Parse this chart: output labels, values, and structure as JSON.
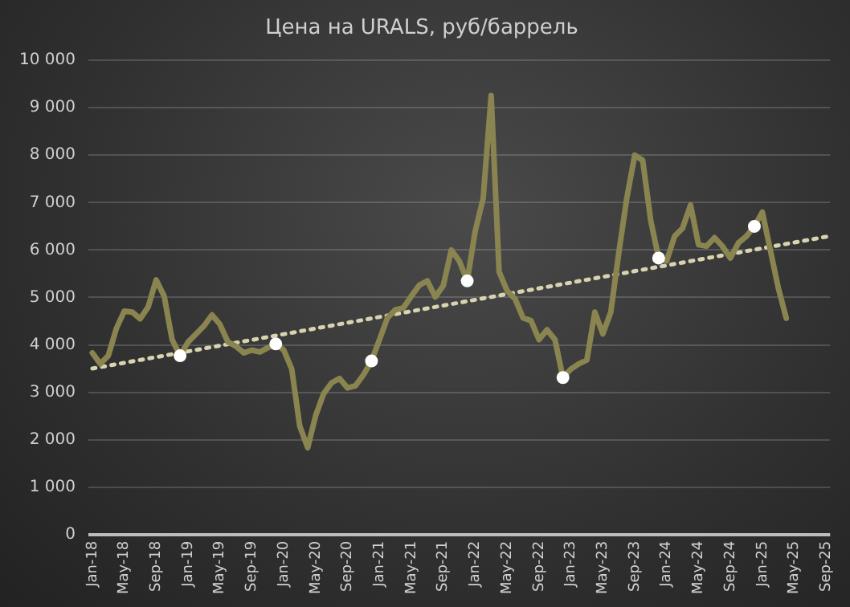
{
  "chart_data": {
    "type": "line",
    "title": "Цена на URALS, руб/баррель",
    "categories": [
      "Jan-18",
      null,
      null,
      null,
      "May-18",
      null,
      null,
      null,
      "Sep-18",
      null,
      null,
      null,
      "Jan-19",
      null,
      null,
      null,
      "May-19",
      null,
      null,
      null,
      "Sep-19",
      null,
      null,
      null,
      "Jan-20",
      null,
      null,
      null,
      "May-20",
      null,
      null,
      null,
      "Sep-20",
      null,
      null,
      null,
      "Jan-21",
      null,
      null,
      null,
      "May-21",
      null,
      null,
      null,
      "Sep-21",
      null,
      null,
      null,
      "Jan-22",
      null,
      null,
      null,
      "May-22",
      null,
      null,
      null,
      "Sep-22",
      null,
      null,
      null,
      "Jan-23",
      null,
      null,
      null,
      "May-23",
      null,
      null,
      null,
      "Sep-23",
      null,
      null,
      null,
      "Jan-24",
      null,
      null,
      null,
      "May-24",
      null,
      null,
      null,
      "Sep-24",
      null,
      null,
      null,
      "Jan-25",
      null,
      null,
      null,
      "May-25",
      null,
      null,
      null,
      "Sep-25"
    ],
    "series": [
      {
        "type": "line",
        "color": "#8a8450",
        "marker": "none",
        "line_style": "solid",
        "values": [
          3830,
          3600,
          3770,
          4340,
          4710,
          4690,
          4550,
          4800,
          5370,
          5030,
          4110,
          3770,
          4060,
          4230,
          4400,
          4630,
          4430,
          4060,
          3970,
          3830,
          3890,
          3850,
          3940,
          4020,
          3890,
          3490,
          2290,
          1830,
          2510,
          2970,
          3200,
          3290,
          3090,
          3140,
          3370,
          3660,
          4110,
          4570,
          4740,
          4780,
          5030,
          5260,
          5350,
          5010,
          5250,
          6000,
          5770,
          5350,
          6400,
          7090,
          9260,
          5540,
          5140,
          4970,
          4570,
          4510,
          4110,
          4320,
          4110,
          3310,
          3490,
          3600,
          3680,
          4690,
          4230,
          4690,
          5940,
          7090,
          8000,
          7890,
          6630,
          5830,
          5770,
          6290,
          6460,
          6950,
          6110,
          6080,
          6260,
          6080,
          5830,
          6150,
          6290,
          6500,
          6800,
          6000,
          5200,
          4560,
          null,
          null,
          null,
          null,
          null
        ]
      },
      {
        "type": "line",
        "color": "#d8d4b0",
        "marker": "none",
        "line_style": "dotted",
        "values": [
          3500,
          null,
          null,
          null,
          null,
          null,
          null,
          null,
          null,
          null,
          null,
          null,
          null,
          null,
          null,
          null,
          null,
          null,
          null,
          null,
          null,
          null,
          null,
          null,
          null,
          null,
          null,
          null,
          null,
          null,
          null,
          null,
          null,
          null,
          null,
          null,
          null,
          null,
          null,
          null,
          null,
          null,
          null,
          null,
          null,
          null,
          null,
          null,
          null,
          null,
          null,
          null,
          null,
          null,
          null,
          null,
          null,
          null,
          null,
          null,
          null,
          null,
          null,
          null,
          null,
          null,
          null,
          null,
          null,
          null,
          null,
          null,
          null,
          null,
          null,
          null,
          null,
          null,
          null,
          null,
          null,
          null,
          null,
          null,
          null,
          null,
          null,
          null,
          null,
          null,
          null,
          null,
          6280
        ]
      },
      {
        "type": "scatter",
        "color": "#ffffff",
        "marker": "circle",
        "values": [
          null,
          null,
          null,
          null,
          null,
          null,
          null,
          null,
          null,
          null,
          null,
          3770,
          null,
          null,
          null,
          null,
          null,
          null,
          null,
          null,
          null,
          null,
          null,
          4020,
          null,
          null,
          null,
          null,
          null,
          null,
          null,
          null,
          null,
          null,
          null,
          3660,
          null,
          null,
          null,
          null,
          null,
          null,
          null,
          null,
          null,
          null,
          null,
          5350,
          null,
          null,
          null,
          null,
          null,
          null,
          null,
          null,
          null,
          null,
          null,
          3310,
          null,
          null,
          null,
          null,
          null,
          null,
          null,
          null,
          null,
          null,
          null,
          5830,
          null,
          null,
          null,
          null,
          null,
          null,
          null,
          null,
          null,
          null,
          null,
          6500,
          null,
          null,
          null,
          null,
          null,
          null,
          null,
          null,
          null
        ]
      }
    ],
    "ylim": [
      0,
      10000
    ],
    "yticks": [
      {
        "value": 0,
        "label": "0"
      },
      {
        "value": 1000,
        "label": "1 000"
      },
      {
        "value": 2000,
        "label": "2 000"
      },
      {
        "value": 3000,
        "label": "3 000"
      },
      {
        "value": 4000,
        "label": "4 000"
      },
      {
        "value": 5000,
        "label": "5 000"
      },
      {
        "value": 6000,
        "label": "6 000"
      },
      {
        "value": 7000,
        "label": "7 000"
      },
      {
        "value": 8000,
        "label": "8 000"
      },
      {
        "value": 9000,
        "label": "9 000"
      },
      {
        "value": 10000,
        "label": "10 000"
      }
    ],
    "grid": "y",
    "legend": false
  }
}
